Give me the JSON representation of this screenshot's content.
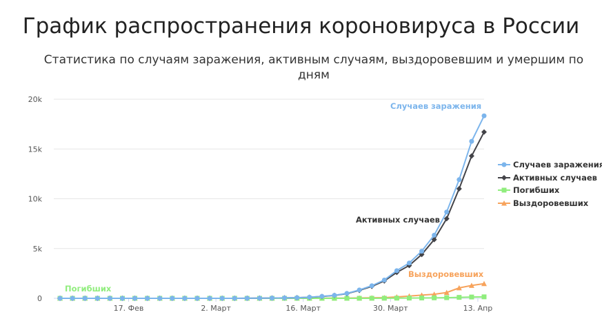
{
  "chart_data": {
    "type": "line",
    "title": "График распространения короновируса в России",
    "subtitle": "Статистика по случаям заражения, активным случаям, выздоровевшим и умершим по дням",
    "x_tick_labels": [
      "17. Фев",
      "2. Март",
      "16. Март",
      "30. Март",
      "13. Апр"
    ],
    "y_tick_labels": [
      "0",
      "5k",
      "10k",
      "15k",
      "20k"
    ],
    "ylim": [
      0,
      20000
    ],
    "grid": true,
    "legend_position": "right",
    "x": [
      "2020-02-06",
      "2020-02-08",
      "2020-02-10",
      "2020-02-12",
      "2020-02-14",
      "2020-02-16",
      "2020-02-18",
      "2020-02-20",
      "2020-02-22",
      "2020-02-24",
      "2020-02-26",
      "2020-02-28",
      "2020-03-01",
      "2020-03-03",
      "2020-03-05",
      "2020-03-07",
      "2020-03-09",
      "2020-03-11",
      "2020-03-13",
      "2020-03-15",
      "2020-03-17",
      "2020-03-19",
      "2020-03-21",
      "2020-03-23",
      "2020-03-25",
      "2020-03-27",
      "2020-03-29",
      "2020-03-31",
      "2020-04-02",
      "2020-04-04",
      "2020-04-06",
      "2020-04-08",
      "2020-04-10",
      "2020-04-12",
      "2020-04-14"
    ],
    "series": [
      {
        "name": "Случаев заражения",
        "color": "#7cb5ec",
        "marker": "circle",
        "values": [
          2,
          2,
          2,
          2,
          2,
          2,
          2,
          2,
          2,
          2,
          2,
          2,
          2,
          3,
          4,
          10,
          17,
          28,
          45,
          63,
          114,
          199,
          306,
          495,
          840,
          1264,
          1836,
          2777,
          3548,
          4731,
          6343,
          8672,
          11917,
          15770,
          18328
        ]
      },
      {
        "name": "Активных случаев",
        "color": "#434348",
        "marker": "diamond",
        "values": [
          2,
          2,
          2,
          2,
          2,
          2,
          2,
          2,
          2,
          2,
          2,
          2,
          2,
          3,
          4,
          10,
          17,
          26,
          40,
          58,
          105,
          185,
          290,
          470,
          800,
          1200,
          1750,
          2600,
          3300,
          4400,
          5900,
          8000,
          11000,
          14300,
          16700
        ]
      },
      {
        "name": "Погибших",
        "color": "#90ed7d",
        "marker": "square",
        "values": [
          0,
          0,
          0,
          0,
          0,
          0,
          0,
          0,
          0,
          0,
          0,
          0,
          0,
          0,
          0,
          0,
          0,
          0,
          0,
          0,
          0,
          0,
          1,
          1,
          3,
          4,
          9,
          17,
          24,
          34,
          47,
          63,
          94,
          130,
          148
        ]
      },
      {
        "name": "Выздоровевших",
        "color": "#f7a35c",
        "marker": "triangle",
        "values": [
          0,
          0,
          0,
          0,
          0,
          0,
          0,
          0,
          0,
          0,
          0,
          0,
          0,
          0,
          0,
          0,
          0,
          2,
          5,
          5,
          9,
          14,
          17,
          22,
          38,
          49,
          66,
          141,
          221,
          321,
          406,
          580,
          1045,
          1286,
          1470
        ]
      }
    ],
    "labels": {
      "cases": "Случаев заражения",
      "active": "Активных случаев",
      "deaths": "Погибших",
      "recovered": "Выздоровевших"
    }
  }
}
